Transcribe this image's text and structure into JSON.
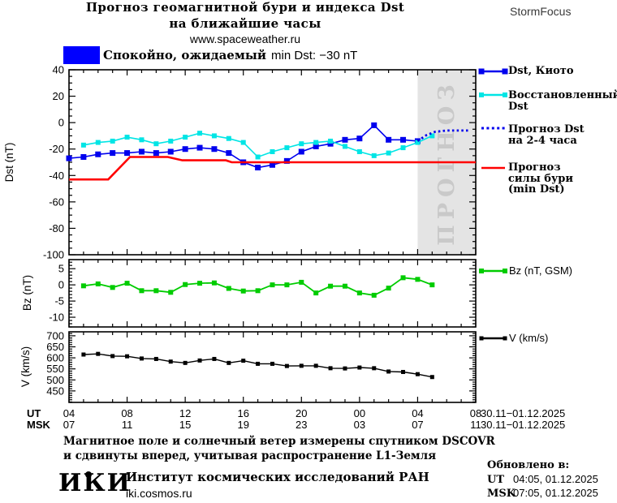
{
  "header": {
    "title_line1": "Прогноз геомагнитной бури и индекса Dst",
    "title_line2": "на ближайшие часы",
    "url": "www.spaceweather.ru",
    "brand": "StormFocus"
  },
  "status": {
    "swatch_color": "#0000ff",
    "prefix": "Спокойно, ожидаемый",
    "suffix": "min Dst: −30 nT"
  },
  "legend": {
    "items": [
      {
        "lines": [
          "Dst, Киото"
        ],
        "color": "#0000ee",
        "style": "solid-squares"
      },
      {
        "lines": [
          "Восстановленный",
          "Dst"
        ],
        "color": "#00e5e5",
        "style": "solid-squares"
      },
      {
        "lines": [
          "Прогноз Dst",
          "на 2-4 часа"
        ],
        "color": "#0000ee",
        "style": "dotted"
      },
      {
        "lines": [
          "Прогноз",
          "силы бури",
          "(min Dst)"
        ],
        "color": "#ff0000",
        "style": "solid"
      },
      {
        "lines": [
          "Bz (nT, GSM)"
        ],
        "color": "#00cc00",
        "style": "solid-squares"
      },
      {
        "lines": [
          "V (km/s)"
        ],
        "color": "#000000",
        "style": "solid-squares"
      }
    ]
  },
  "forecast_region": {
    "label": "ПРОГНОЗ",
    "from_hour": 28,
    "fill": "#e4e4e4"
  },
  "xaxis": {
    "prefix_ut": "UT",
    "prefix_msk": "MSK",
    "ut": [
      "04",
      "08",
      "12",
      "16",
      "20",
      "00",
      "04",
      "08"
    ],
    "msk": [
      "07",
      "11",
      "15",
      "19",
      "23",
      "03",
      "07",
      "11"
    ],
    "date": "30.11−01.12.2025"
  },
  "chart_data": {
    "type": "line",
    "x_unit": "hours UT, 04 UT 30.11 to 08 UT 01.12",
    "xlim": [
      4,
      32
    ],
    "x_major_ticks": [
      4,
      8,
      12,
      16,
      20,
      24,
      28,
      32
    ],
    "x_minor_step": 1,
    "panels": [
      {
        "name": "dst",
        "ylabel": "Dst (nT)",
        "ylim": [
          40,
          -100
        ],
        "yticks": [
          40,
          20,
          0,
          -20,
          -40,
          -60,
          -80,
          -100
        ],
        "y_minor_step": 5,
        "series": [
          {
            "name": "dst_kyoto",
            "color": "#0000ee",
            "style": "solid",
            "width": 1.6,
            "marker": "square",
            "marker_size": 7,
            "x": [
              4,
              5,
              6,
              7,
              8,
              9,
              10,
              11,
              12,
              13,
              14,
              15,
              16,
              17,
              18,
              19,
              20,
              21,
              22,
              23,
              24,
              25,
              26,
              27,
              28
            ],
            "y": [
              -27,
              -26,
              -24,
              -23,
              -23,
              -22,
              -23,
              -22,
              -20,
              -19,
              -20,
              -23,
              -30,
              -34,
              -32,
              -29,
              -22,
              -18,
              -16,
              -13,
              -12,
              -2,
              -13,
              -13,
              -14
            ]
          },
          {
            "name": "dst_reconstructed",
            "color": "#00e5e5",
            "style": "solid",
            "width": 1.6,
            "marker": "square",
            "marker_size": 6,
            "x": [
              5,
              6,
              7,
              8,
              9,
              10,
              11,
              12,
              13,
              14,
              15,
              16,
              17,
              18,
              19,
              20,
              21,
              22,
              23,
              24,
              25,
              26,
              27,
              28,
              29
            ],
            "y": [
              -17,
              -15,
              -14,
              -11,
              -13,
              -16,
              -14,
              -11,
              -8,
              -10,
              -12,
              -15,
              -26,
              -22,
              -19,
              -16,
              -15,
              -14,
              -18,
              -22,
              -25,
              -23,
              -19,
              -15,
              -10
            ]
          },
          {
            "name": "dst_forecast_2_4h",
            "color": "#0000ee",
            "style": "dotted",
            "width": 2.8,
            "x": [
              28,
              28.6,
              29.2,
              30,
              31.6
            ],
            "y": [
              -14,
              -9.5,
              -7,
              -6,
              -6
            ]
          },
          {
            "name": "storm_strength_forecast_min_dst",
            "color": "#ff0000",
            "style": "solid",
            "width": 2.6,
            "x": [
              4,
              6.7,
              8.2,
              10.8,
              11.8,
              14.8,
              15.2,
              32
            ],
            "y": [
              -43,
              -43,
              -26,
              -26,
              -28.5,
              -28.5,
              -30,
              -30
            ]
          }
        ]
      },
      {
        "name": "bz",
        "ylabel": "Bz (nT)",
        "ylim": [
          7.8,
          -13
        ],
        "yticks": [
          5,
          0,
          -5,
          -10
        ],
        "y_minor_step": 1,
        "series": [
          {
            "name": "bz_gsm",
            "color": "#00cc00",
            "style": "solid",
            "width": 1.8,
            "marker": "square",
            "marker_size": 6,
            "x": [
              5,
              6,
              7,
              8,
              9,
              10,
              11,
              12,
              13,
              14,
              15,
              16,
              17,
              18,
              19,
              20,
              21,
              22,
              23,
              24,
              25,
              26,
              27,
              28,
              29
            ],
            "y": [
              -0.3,
              0.3,
              -0.8,
              0.5,
              -1.8,
              -1.8,
              -2.3,
              0.1,
              0.5,
              0.6,
              -1.1,
              -1.9,
              -1.8,
              0,
              0,
              0.8,
              -2.5,
              -0.4,
              -0.4,
              -2.5,
              -3.2,
              -1,
              2.2,
              1.7,
              0
            ]
          }
        ]
      },
      {
        "name": "v",
        "ylabel": "V (km/s)",
        "ylim": [
          718,
          398
        ],
        "yticks": [
          700,
          650,
          600,
          550,
          500,
          450
        ],
        "y_minor_step": 10,
        "series": [
          {
            "name": "solar_wind_speed",
            "color": "#000000",
            "style": "solid",
            "width": 1.4,
            "marker": "square",
            "marker_size": 5,
            "x": [
              5,
              6,
              7,
              8,
              9,
              10,
              11,
              12,
              13,
              14,
              15,
              16,
              17,
              18,
              19,
              20,
              21,
              22,
              23,
              24,
              25,
              26,
              27,
              28,
              29
            ],
            "y": [
              615,
              618,
              608,
              607,
              597,
              595,
              583,
              577,
              588,
              595,
              577,
              587,
              573,
              573,
              563,
              564,
              564,
              553,
              552,
              556,
              553,
              538,
              536,
              526,
              513
            ]
          }
        ]
      }
    ]
  },
  "footer": {
    "note_line1": "Магнитное поле и солнечный ветер измерены спутником DSCOVR",
    "note_line2": "и сдвинуты вперед, учитывая распространение L1-Земля",
    "logo": "ИКИ",
    "institute": "Институт космических исследований РАН",
    "institute_url": "iki.cosmos.ru",
    "updated_label": "Обновлено в:",
    "updated_rows": [
      {
        "prefix": "UT",
        "value": "04:05, 01.12.2025"
      },
      {
        "prefix": "MSK",
        "value": "07:05, 01.12.2025"
      }
    ]
  }
}
